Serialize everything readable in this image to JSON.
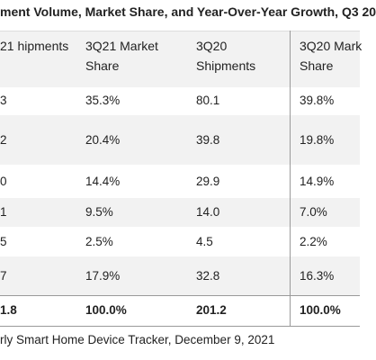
{
  "title": "ment Volume, Market Share, and Year-Over-Year Growth, Q3 20",
  "table": {
    "header": [
      "21 hipments",
      "3Q21 Market Share",
      "3Q20 Shipments",
      "3Q20 Mark Share"
    ],
    "rows": [
      [
        "3",
        "35.3%",
        "80.1",
        "39.8%"
      ],
      [
        "2",
        "20.4%",
        "39.8",
        "19.8%"
      ],
      [
        "0",
        "14.4%",
        "29.9",
        "14.9%"
      ],
      [
        "1",
        "9.5%",
        "14.0",
        "7.0%"
      ],
      [
        "5",
        "2.5%",
        "4.5",
        "2.2%"
      ],
      [
        "7",
        "17.9%",
        "32.8",
        "16.3%"
      ],
      [
        "1.8",
        "100.0%",
        "201.2",
        "100.0%"
      ]
    ]
  },
  "footer": "rly Smart Home Device Tracker, December 9, 2021"
}
